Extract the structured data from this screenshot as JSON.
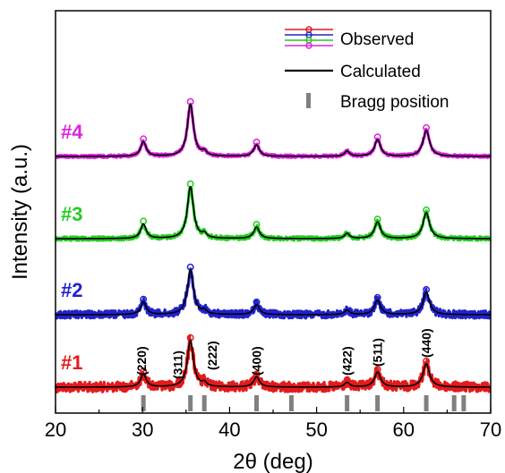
{
  "chart_data": {
    "type": "line",
    "xlabel": "2θ (deg)",
    "ylabel": "Intensity (a.u.)",
    "xlim": [
      20,
      70
    ],
    "xticks": [
      "20",
      "30",
      "40",
      "50",
      "60",
      "70"
    ],
    "grid": false,
    "legend": {
      "placement": "top-right",
      "entries": {
        "observed": "Observed",
        "calculated": "Calculated",
        "bragg": "Bragg position"
      }
    },
    "colors": {
      "sample1": "#e41a1c",
      "sample2": "#2222cc",
      "sample3": "#22cc22",
      "sample4": "#dd22dd",
      "calculated": "#000000",
      "bragg": "#808080"
    },
    "samples": [
      {
        "label": "#1",
        "color": "#e41a1c"
      },
      {
        "label": "#2",
        "color": "#2222cc"
      },
      {
        "label": "#3",
        "color": "#22cc22"
      },
      {
        "label": "#4",
        "color": "#dd22dd"
      }
    ],
    "peaks": [
      {
        "two_theta": 30.1,
        "rel_intensity": 0.28,
        "hkl": "(220)"
      },
      {
        "two_theta": 35.5,
        "rel_intensity": 1.0,
        "hkl": "(311)"
      },
      {
        "two_theta": 37.1,
        "rel_intensity": 0.08,
        "hkl": "(222)"
      },
      {
        "two_theta": 43.1,
        "rel_intensity": 0.22,
        "hkl": "(400)"
      },
      {
        "two_theta": 53.5,
        "rel_intensity": 0.1,
        "hkl": "(422)"
      },
      {
        "two_theta": 57.0,
        "rel_intensity": 0.32,
        "hkl": "(511)"
      },
      {
        "two_theta": 62.6,
        "rel_intensity": 0.5,
        "hkl": "(440)"
      }
    ],
    "bragg_positions": [
      30.1,
      35.5,
      37.1,
      43.1,
      47.1,
      53.5,
      57.0,
      62.6,
      65.8,
      66.9
    ]
  }
}
